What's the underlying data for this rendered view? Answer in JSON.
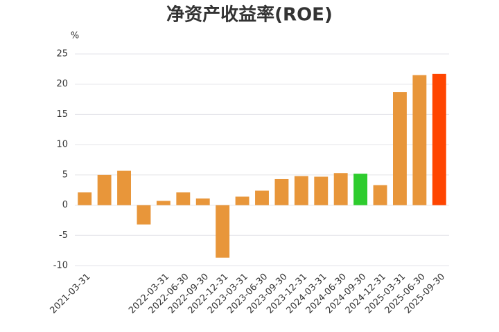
{
  "chart_data": {
    "type": "bar",
    "title": "净资产收益率(ROE)",
    "y_unit": "%",
    "categories": [
      "2021-03-31",
      null,
      null,
      null,
      "2022-03-31",
      "2022-06-30",
      "2022-09-30",
      "2022-12-31",
      "2023-03-31",
      "2023-06-30",
      "2023-09-30",
      "2023-12-31",
      "2024-03-31",
      "2024-06-30",
      "2024-09-30",
      "2024-12-31",
      "2025-03-31",
      "2025-06-30",
      "2025-09-30"
    ],
    "values": [
      2.1,
      5.0,
      5.7,
      -3.2,
      0.7,
      2.1,
      1.1,
      -8.7,
      1.4,
      2.4,
      4.3,
      4.8,
      4.7,
      5.3,
      5.2,
      3.3,
      18.7,
      21.5,
      21.7
    ],
    "colors": [
      "#e8963a",
      "#e8963a",
      "#e8963a",
      "#e8963a",
      "#e8963a",
      "#e8963a",
      "#e8963a",
      "#e8963a",
      "#e8963a",
      "#e8963a",
      "#e8963a",
      "#e8963a",
      "#e8963a",
      "#e8963a",
      "#2ecc2e",
      "#e8963a",
      "#e8963a",
      "#e8963a",
      "#ff4500"
    ],
    "ylim": [
      -10,
      25
    ],
    "yticks": [
      -10,
      -5,
      0,
      5,
      10,
      15,
      20,
      25
    ],
    "grid": true
  }
}
